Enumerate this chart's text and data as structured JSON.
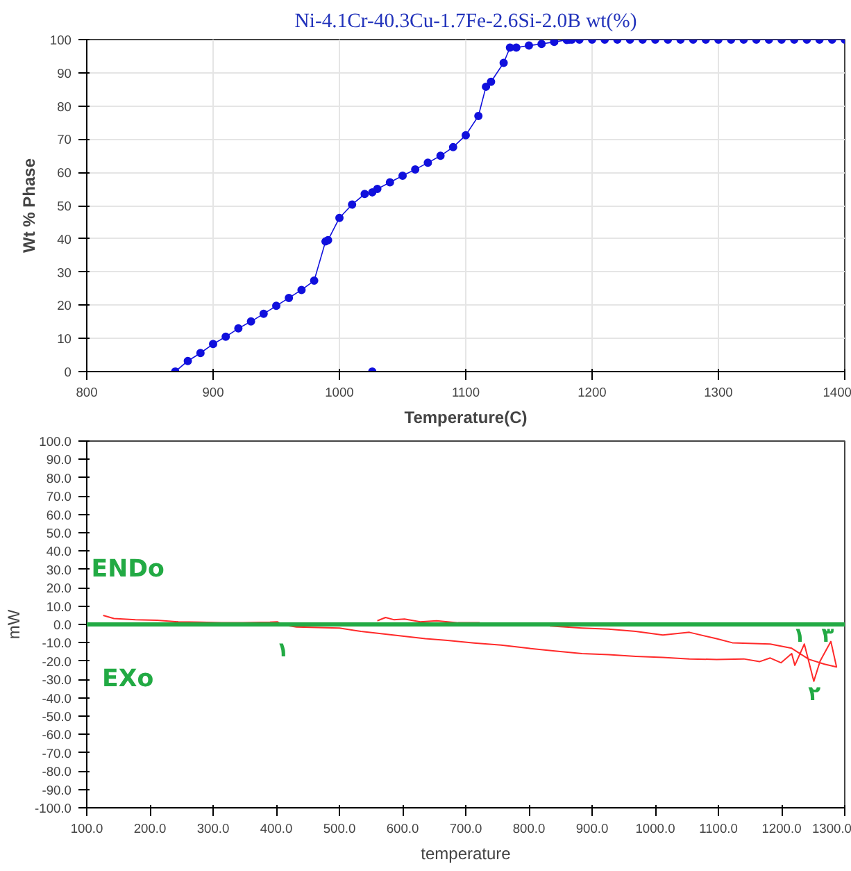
{
  "chart_data": [
    {
      "type": "line",
      "title": "Ni-4.1Cr-40.3Cu-1.7Fe-2.6Si-2.0B wt(%)",
      "xlabel": "Temperature(C)",
      "ylabel": "Wt % Phase",
      "xlim": [
        800,
        1400
      ],
      "ylim": [
        0,
        100
      ],
      "xticks": [
        800,
        900,
        1000,
        1100,
        1200,
        1300,
        1400
      ],
      "yticks": [
        0,
        10,
        20,
        30,
        40,
        50,
        60,
        70,
        80,
        90,
        100
      ],
      "grid": true,
      "marker": "circle",
      "line_style": "solid",
      "series": [
        {
          "color": "#1010dd",
          "x": [
            870,
            880,
            890,
            900,
            910,
            920,
            930,
            940,
            950,
            960,
            970,
            980,
            989,
            991,
            1000,
            1010,
            1020,
            1026,
            1030,
            1040,
            1050,
            1060,
            1070,
            1080,
            1090,
            1100,
            1110,
            1116,
            1120,
            1130,
            1135,
            1140,
            1150,
            1160,
            1170,
            1180,
            1182,
            1184,
            1190,
            1200,
            1210,
            1220,
            1230,
            1240,
            1250,
            1260,
            1270,
            1280,
            1290,
            1300,
            1310,
            1320,
            1330,
            1340,
            1350,
            1360,
            1370,
            1380,
            1390,
            1400
          ],
          "values": [
            0,
            3.2,
            5.6,
            8.3,
            10.5,
            13,
            15.1,
            17.4,
            19.8,
            22.2,
            24.6,
            27.4,
            39.2,
            39.6,
            46.3,
            50.3,
            53.5,
            54,
            55,
            57,
            59,
            60.9,
            62.9,
            65,
            67.6,
            71.2,
            77,
            85.8,
            87.3,
            93,
            97.6,
            97.6,
            98.2,
            98.7,
            99.3,
            99.9,
            100,
            100,
            100,
            100,
            100,
            100,
            100,
            100,
            100,
            100,
            100,
            100,
            100,
            100,
            100,
            100,
            100,
            100,
            100,
            100,
            100,
            100,
            100,
            100
          ]
        },
        {
          "type": "scatter",
          "color": "#1010dd",
          "x": [
            1026
          ],
          "values": [
            0
          ]
        }
      ]
    },
    {
      "type": "line",
      "xlabel": "temperature",
      "ylabel": "mW",
      "xlim": [
        100,
        1300
      ],
      "ylim": [
        -100,
        100
      ],
      "xticks": [
        {
          "value": 100,
          "label": "100.0"
        },
        {
          "value": 200,
          "label": "200.0"
        },
        {
          "value": 300,
          "label": "300.0"
        },
        {
          "value": 400,
          "label": "400.0"
        },
        {
          "value": 500,
          "label": "500.0"
        },
        {
          "value": 600,
          "label": "600.0"
        },
        {
          "value": 700,
          "label": "700.0"
        },
        {
          "value": 800,
          "label": "800.0"
        },
        {
          "value": 900,
          "label": "900.0"
        },
        {
          "value": 1000,
          "label": "1000.0"
        },
        {
          "value": 1100,
          "label": "1100.0"
        },
        {
          "value": 1200,
          "label": "1200.0"
        },
        {
          "value": 1300,
          "label": "1300.0"
        }
      ],
      "yticks": [
        {
          "value": -100,
          "label": "-100.0"
        },
        {
          "value": -90,
          "label": "-90.0"
        },
        {
          "value": -80,
          "label": "-80.0"
        },
        {
          "value": -70,
          "label": "-70.0"
        },
        {
          "value": -60,
          "label": "-60.0"
        },
        {
          "value": -50,
          "label": "-50.0"
        },
        {
          "value": -40,
          "label": "-40.0"
        },
        {
          "value": -30,
          "label": "-30.0"
        },
        {
          "value": -20,
          "label": "-20.0"
        },
        {
          "value": -10,
          "label": "-10.0"
        },
        {
          "value": 0,
          "label": "0.0"
        },
        {
          "value": 10,
          "label": "10.0"
        },
        {
          "value": 20,
          "label": "20.0"
        },
        {
          "value": 30,
          "label": "30.0"
        },
        {
          "value": 40,
          "label": "40.0"
        },
        {
          "value": 50,
          "label": "50.0"
        },
        {
          "value": 60,
          "label": "60.0"
        },
        {
          "value": 70,
          "label": "70.0"
        },
        {
          "value": 80,
          "label": "80.0"
        },
        {
          "value": 90,
          "label": "90.0"
        },
        {
          "value": 100,
          "label": "100.0"
        }
      ],
      "grid": false,
      "line_style": "solid",
      "ref_lines": [
        {
          "axis": "y",
          "value": 0,
          "color": "#22aa44"
        }
      ],
      "annotations": [
        "ENDo",
        "EXo",
        "۱",
        "۱",
        "۲",
        "۳"
      ],
      "series": [
        {
          "color": "#ff2a2a",
          "x": [
            126,
            143,
            177,
            211,
            245,
            279,
            313,
            347,
            390,
            402,
            411,
            432,
            466,
            500,
            534,
            585,
            636,
            671,
            713,
            756,
            799,
            841,
            884,
            926,
            969,
            1012,
            1054,
            1097,
            1140,
            1165,
            1182,
            1199,
            1216,
            1221,
            1236,
            1251,
            1261,
            1278,
            1287,
            1268,
            1243,
            1216,
            1182,
            1122,
            1097,
            1054,
            1012,
            969,
            926,
            884,
            833
          ],
          "values": [
            4.9,
            3.2,
            2.6,
            2.3,
            1.4,
            1.2,
            0.9,
            0.9,
            1.2,
            1.4,
            -0.3,
            -1.4,
            -1.7,
            -2,
            -3.8,
            -5.8,
            -7.8,
            -8.7,
            -10.1,
            -11.3,
            -13,
            -14.5,
            -15.9,
            -16.5,
            -17.4,
            -18,
            -18.8,
            -19.1,
            -18.8,
            -20.3,
            -18.3,
            -20.9,
            -15.9,
            -22.3,
            -10.7,
            -31,
            -20,
            -9.3,
            -23.2,
            -21.7,
            -19,
            -13,
            -10.7,
            -10,
            -7.8,
            -4.3,
            -5.8,
            -3.8,
            -2.6,
            -2,
            -0.9
          ]
        },
        {
          "color": "#ff2a2a",
          "x": [
            560,
            573,
            586,
            603,
            628,
            654,
            688,
            722
          ],
          "values": [
            2,
            3.8,
            2.6,
            2.9,
            1.4,
            2,
            0.9,
            0.9
          ]
        }
      ]
    }
  ]
}
